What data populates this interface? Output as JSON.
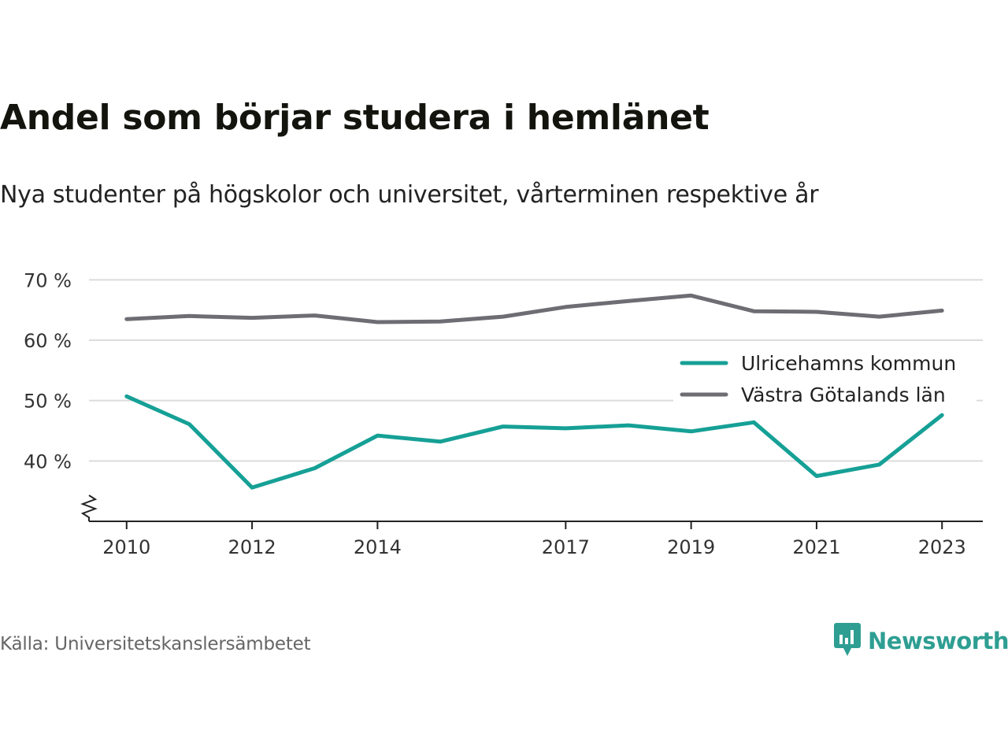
{
  "title": "Andel som börjar studera i hemlänet",
  "subtitle": "Nya studenter på högskolor och universitet, vårterminen respektive år",
  "source": "Källa: Universitetskanslersämbetet",
  "brand": {
    "name": "Newsworthy",
    "icon": "newsworthy-logo-icon",
    "color": "#2e9e92"
  },
  "chart_data": {
    "type": "line",
    "x": [
      2010,
      2011,
      2012,
      2013,
      2014,
      2015,
      2016,
      2017,
      2018,
      2019,
      2020,
      2021,
      2022,
      2023
    ],
    "x_tick_labels": [
      "2010",
      "2012",
      "2014",
      "2017",
      "2019",
      "2021",
      "2023"
    ],
    "y_ticks": [
      40,
      50,
      60,
      70
    ],
    "y_tick_labels": [
      "40 %",
      "50 %",
      "60 %",
      "70 %"
    ],
    "ylim": [
      30,
      72
    ],
    "xlim": [
      2009.4,
      2023.65
    ],
    "y_axis_break": true,
    "grid": true,
    "legend_position": "right",
    "series": [
      {
        "name": "Ulricehamns kommun",
        "color": "#16a096",
        "values": [
          50.7,
          46.1,
          35.6,
          38.8,
          44.2,
          43.2,
          45.7,
          45.4,
          45.9,
          44.9,
          46.4,
          37.5,
          39.4,
          47.6
        ]
      },
      {
        "name": "Västra Götalands län",
        "color": "#6e6d73",
        "values": [
          63.5,
          64.0,
          63.7,
          64.1,
          63.0,
          63.1,
          63.9,
          65.5,
          66.5,
          67.4,
          64.8,
          64.7,
          63.9,
          64.9
        ]
      }
    ]
  }
}
